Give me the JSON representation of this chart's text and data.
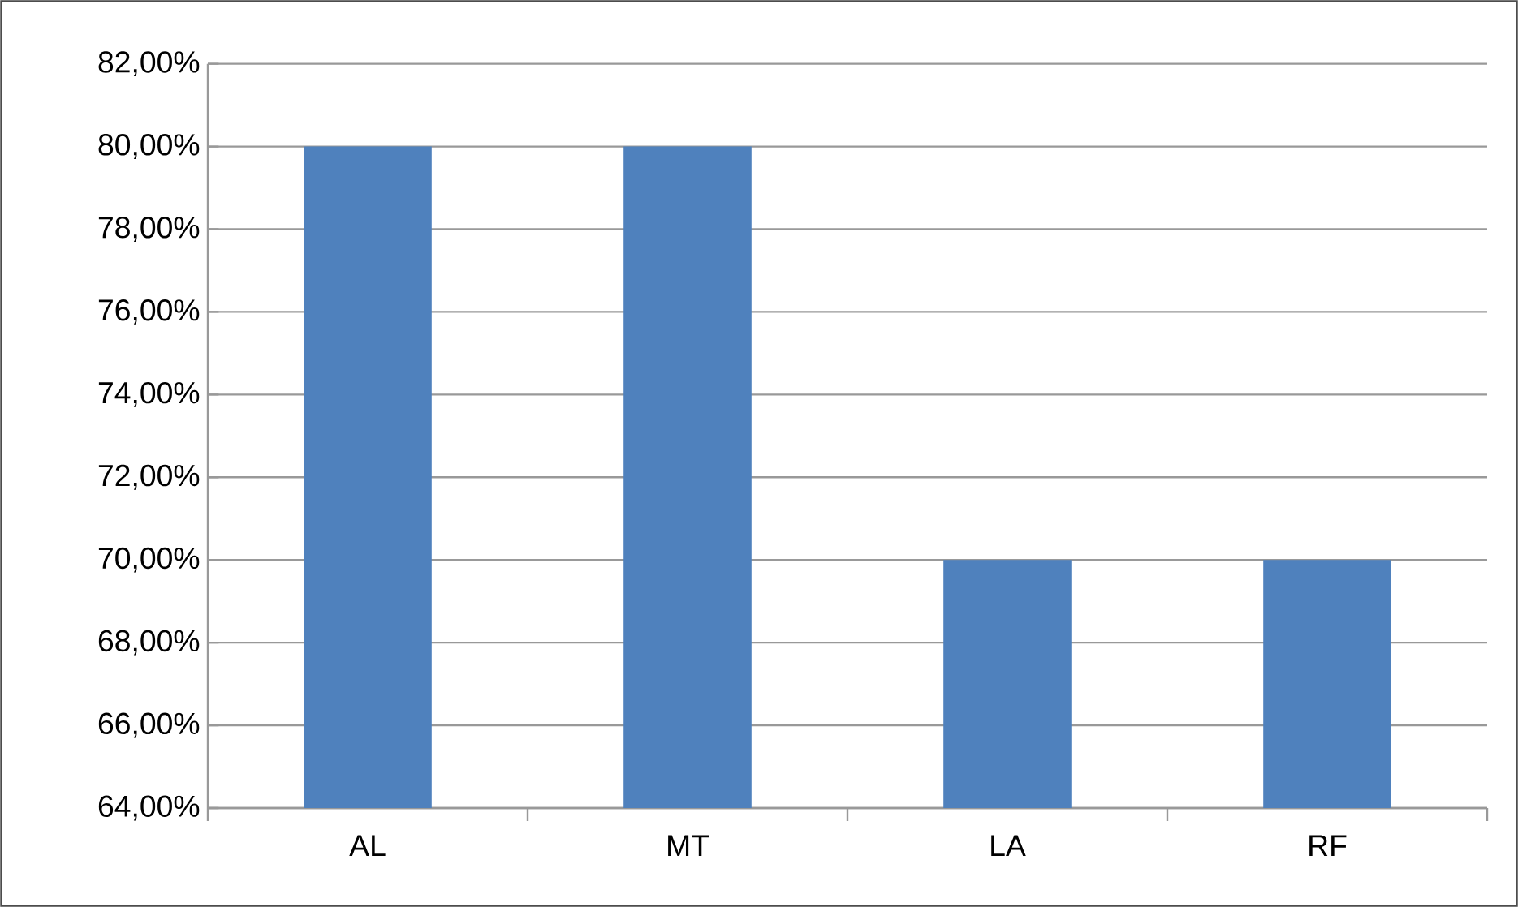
{
  "chart_data": {
    "type": "bar",
    "categories": [
      "AL",
      "MT",
      "LA",
      "RF"
    ],
    "values": [
      80,
      80,
      70,
      70
    ],
    "color": "#4f81bd",
    "ylim": [
      64,
      82
    ],
    "yticks": [
      {
        "value": 64,
        "label": "64,00%"
      },
      {
        "value": 66,
        "label": "66,00%"
      },
      {
        "value": 68,
        "label": "68,00%"
      },
      {
        "value": 70,
        "label": "70,00%"
      },
      {
        "value": 72,
        "label": "72,00%"
      },
      {
        "value": 74,
        "label": "74,00%"
      },
      {
        "value": 76,
        "label": "76,00%"
      },
      {
        "value": 78,
        "label": "78,00%"
      },
      {
        "value": 80,
        "label": "80,00%"
      },
      {
        "value": 82,
        "label": "82,00%"
      }
    ],
    "grid": "y"
  }
}
